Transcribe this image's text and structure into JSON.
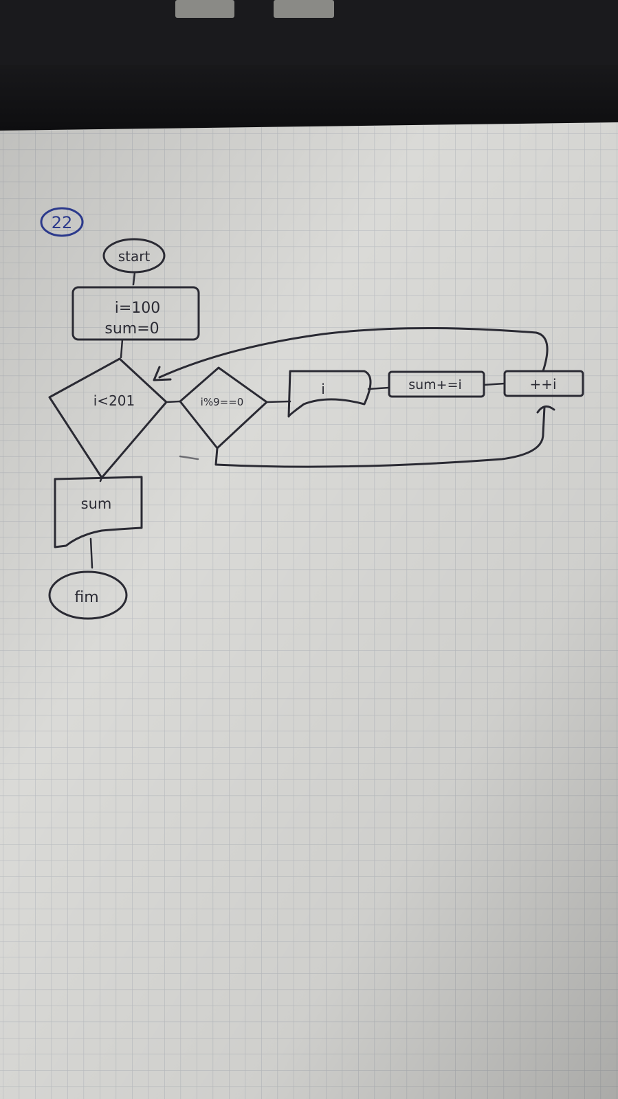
{
  "diagram": {
    "type": "flowchart",
    "exercise_number": "22",
    "nodes": {
      "start": "start",
      "init_1": "i=100",
      "init_2": "sum=0",
      "loop_condition": "i<201",
      "parity_condition": "i%9==0",
      "output_i": "i",
      "accumulate": "sum+=i",
      "increment": "++i",
      "output_sum": "sum",
      "end": "fim"
    },
    "edges": [
      {
        "from": "start",
        "to": "init"
      },
      {
        "from": "init",
        "to": "loop_condition"
      },
      {
        "from": "loop_condition",
        "to": "parity_condition"
      },
      {
        "from": "parity_condition",
        "to": "output_i"
      },
      {
        "from": "output_i",
        "to": "accumulate"
      },
      {
        "from": "accumulate",
        "to": "increment"
      },
      {
        "from": "parity_condition",
        "to": "increment"
      },
      {
        "from": "increment",
        "to": "loop_condition"
      },
      {
        "from": "loop_condition",
        "to": "output_sum"
      },
      {
        "from": "output_sum",
        "to": "end"
      }
    ]
  },
  "colors": {
    "paper": "#d9d9d6",
    "grid": "#b9bcc0",
    "ink": "#2a2a33",
    "exercise_circle": "#2c3a8c",
    "laptop": "#151517"
  }
}
